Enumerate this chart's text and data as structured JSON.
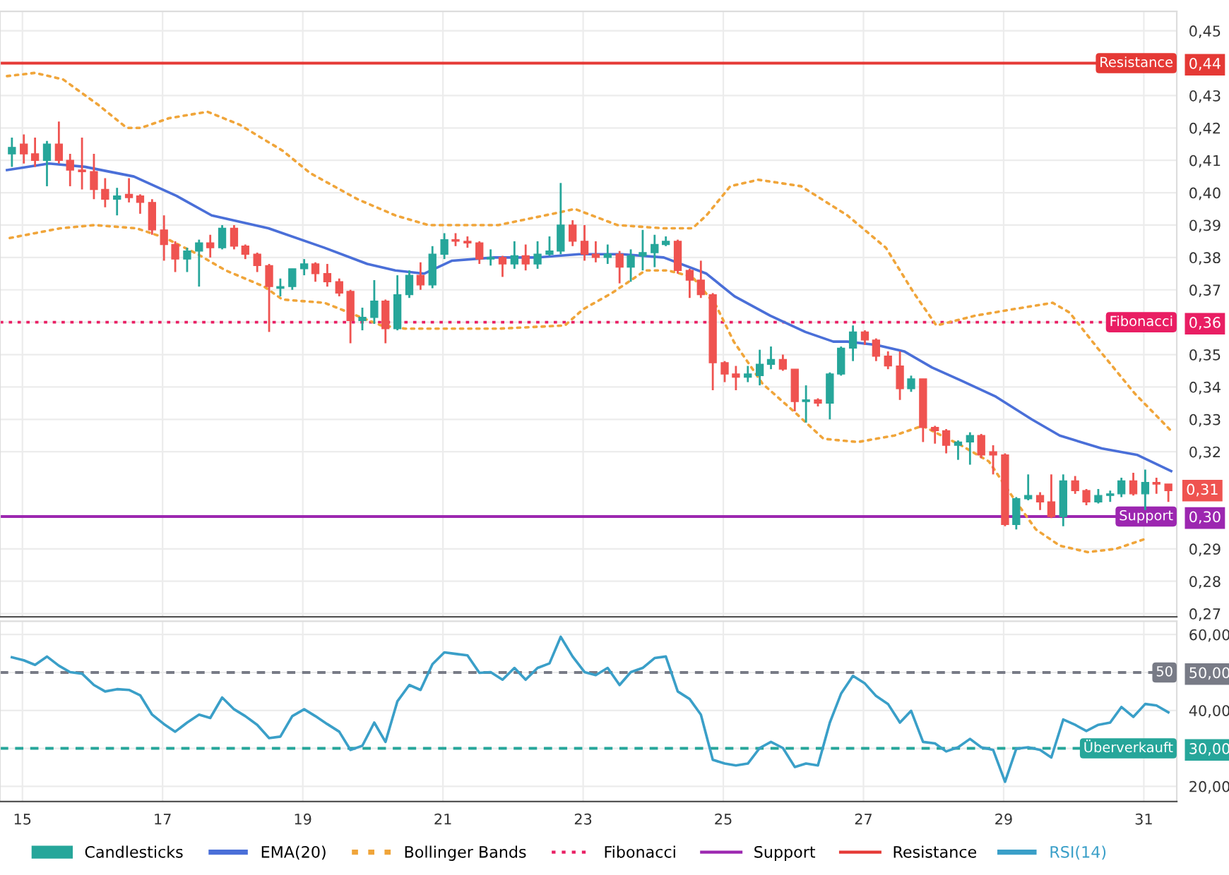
{
  "chart_data": [
    {
      "type": "candlestick",
      "legend": "bottom",
      "grid": true,
      "tick_labels": "y",
      "xlim": [
        14.68,
        31.47
      ],
      "ylim": [
        0.269,
        0.456
      ],
      "xticks": [
        15,
        17,
        19,
        21,
        23,
        25,
        27,
        29,
        31
      ],
      "yticks": [
        {
          "value": 0.27,
          "label": "0,27"
        },
        {
          "value": 0.28,
          "label": "0,28"
        },
        {
          "value": 0.29,
          "label": "0,29"
        },
        {
          "value": 0.3,
          "label": "0,30"
        },
        {
          "value": 0.32,
          "label": "0,32"
        },
        {
          "value": 0.33,
          "label": "0,33"
        },
        {
          "value": 0.34,
          "label": "0,34"
        },
        {
          "value": 0.35,
          "label": "0,35"
        },
        {
          "value": 0.36,
          "label": "0,36"
        },
        {
          "value": 0.37,
          "label": "0,37"
        },
        {
          "value": 0.38,
          "label": "0,38"
        },
        {
          "value": 0.39,
          "label": "0,39"
        },
        {
          "value": 0.4,
          "label": "0,40"
        },
        {
          "value": 0.41,
          "label": "0,41"
        },
        {
          "value": 0.42,
          "label": "0,42"
        },
        {
          "value": 0.43,
          "label": "0,43"
        },
        {
          "value": 0.44,
          "label": "0,44"
        },
        {
          "value": 0.45,
          "label": "0,45"
        }
      ],
      "series": [
        {
          "type": "candlestick",
          "name": "Candlesticks",
          "x": [
            14.85,
            15.02,
            15.18,
            15.35,
            15.52,
            15.68,
            15.85,
            16.02,
            16.18,
            16.35,
            16.52,
            16.68,
            16.85,
            17.02,
            17.18,
            17.35,
            17.52,
            17.68,
            17.85,
            18.02,
            18.18,
            18.35,
            18.52,
            18.68,
            18.85,
            19.02,
            19.18,
            19.35,
            19.52,
            19.68,
            19.85,
            20.02,
            20.18,
            20.35,
            20.52,
            20.68,
            20.85,
            21.02,
            21.18,
            21.35,
            21.52,
            21.68,
            21.85,
            22.02,
            22.18,
            22.35,
            22.52,
            22.68,
            22.85,
            23.02,
            23.18,
            23.35,
            23.52,
            23.68,
            23.85,
            24.02,
            24.18,
            24.35,
            24.52,
            24.68,
            24.85,
            25.02,
            25.18,
            25.35,
            25.52,
            25.68,
            25.85,
            26.02,
            26.18,
            26.35,
            26.52,
            26.68,
            26.85,
            27.02,
            27.18,
            27.35,
            27.52,
            27.68,
            27.85,
            28.02,
            28.18,
            28.35,
            28.52,
            28.68,
            28.85,
            29.02,
            29.18,
            29.35,
            29.52,
            29.68,
            29.85,
            30.02,
            30.18,
            30.35,
            30.52,
            30.68,
            30.85,
            31.02,
            31.18,
            31.35
          ],
          "ohlc": [
            [
              0.412,
              0.417,
              0.408,
              0.414
            ],
            [
              0.415,
              0.418,
              0.409,
              0.412
            ],
            [
              0.412,
              0.417,
              0.408,
              0.41
            ],
            [
              0.41,
              0.416,
              0.402,
              0.415
            ],
            [
              0.415,
              0.422,
              0.409,
              0.41
            ],
            [
              0.41,
              0.412,
              0.402,
              0.407
            ],
            [
              0.407,
              0.417,
              0.401,
              0.4065
            ],
            [
              0.4065,
              0.412,
              0.398,
              0.401
            ],
            [
              0.401,
              0.4045,
              0.3955,
              0.398
            ],
            [
              0.398,
              0.4015,
              0.393,
              0.399
            ],
            [
              0.3995,
              0.4045,
              0.397,
              0.3985
            ],
            [
              0.399,
              0.3995,
              0.3935,
              0.397
            ],
            [
              0.397,
              0.398,
              0.387,
              0.3885
            ],
            [
              0.3885,
              0.393,
              0.379,
              0.384
            ],
            [
              0.384,
              0.385,
              0.3755,
              0.3795
            ],
            [
              0.3795,
              0.383,
              0.3755,
              0.382
            ],
            [
              0.382,
              0.3855,
              0.371,
              0.3845
            ],
            [
              0.3845,
              0.387,
              0.38,
              0.383
            ],
            [
              0.383,
              0.39,
              0.3825,
              0.389
            ],
            [
              0.389,
              0.39,
              0.3825,
              0.3835
            ],
            [
              0.3835,
              0.384,
              0.3795,
              0.381
            ],
            [
              0.381,
              0.3815,
              0.3755,
              0.3775
            ],
            [
              0.3775,
              0.378,
              0.357,
              0.371
            ],
            [
              0.3705,
              0.3735,
              0.368,
              0.371
            ],
            [
              0.371,
              0.3765,
              0.37,
              0.3765
            ],
            [
              0.3765,
              0.3795,
              0.3745,
              0.378
            ],
            [
              0.378,
              0.3785,
              0.3725,
              0.375
            ],
            [
              0.375,
              0.378,
              0.371,
              0.3725
            ],
            [
              0.3725,
              0.3735,
              0.368,
              0.369
            ],
            [
              0.3695,
              0.37,
              0.3535,
              0.3605
            ],
            [
              0.3605,
              0.3645,
              0.3575,
              0.3615
            ],
            [
              0.3615,
              0.373,
              0.3595,
              0.3665
            ],
            [
              0.3665,
              0.367,
              0.3535,
              0.358
            ],
            [
              0.358,
              0.3745,
              0.3575,
              0.3685
            ],
            [
              0.3685,
              0.376,
              0.3675,
              0.3745
            ],
            [
              0.3745,
              0.3785,
              0.37,
              0.3715
            ],
            [
              0.3715,
              0.3835,
              0.3705,
              0.381
            ],
            [
              0.381,
              0.3875,
              0.3795,
              0.3855
            ],
            [
              0.3855,
              0.3875,
              0.3835,
              0.385
            ],
            [
              0.385,
              0.3865,
              0.383,
              0.3845
            ],
            [
              0.3845,
              0.385,
              0.378,
              0.3795
            ],
            [
              0.3795,
              0.3825,
              0.3775,
              0.38
            ],
            [
              0.38,
              0.3805,
              0.374,
              0.378
            ],
            [
              0.378,
              0.385,
              0.3765,
              0.3805
            ],
            [
              0.3805,
              0.384,
              0.376,
              0.378
            ],
            [
              0.378,
              0.385,
              0.3765,
              0.381
            ],
            [
              0.381,
              0.3865,
              0.3805,
              0.382
            ],
            [
              0.382,
              0.403,
              0.381,
              0.39
            ],
            [
              0.39,
              0.3915,
              0.3835,
              0.385
            ],
            [
              0.385,
              0.39,
              0.379,
              0.381
            ],
            [
              0.381,
              0.385,
              0.3785,
              0.38
            ],
            [
              0.38,
              0.384,
              0.378,
              0.381
            ],
            [
              0.381,
              0.382,
              0.372,
              0.377
            ],
            [
              0.377,
              0.3825,
              0.3725,
              0.3805
            ],
            [
              0.3805,
              0.3885,
              0.376,
              0.3815
            ],
            [
              0.3815,
              0.387,
              0.377,
              0.384
            ],
            [
              0.384,
              0.3865,
              0.3835,
              0.385
            ],
            [
              0.385,
              0.3855,
              0.375,
              0.376
            ],
            [
              0.376,
              0.3765,
              0.3675,
              0.373
            ],
            [
              0.373,
              0.379,
              0.3675,
              0.3685
            ],
            [
              0.3685,
              0.369,
              0.339,
              0.3475
            ],
            [
              0.3475,
              0.348,
              0.3415,
              0.344
            ],
            [
              0.344,
              0.3465,
              0.339,
              0.343
            ],
            [
              0.343,
              0.3465,
              0.3415,
              0.344
            ],
            [
              0.3435,
              0.3515,
              0.3405,
              0.347
            ],
            [
              0.347,
              0.3525,
              0.3455,
              0.3485
            ],
            [
              0.3485,
              0.35,
              0.345,
              0.3455
            ],
            [
              0.3455,
              0.3455,
              0.3325,
              0.3355
            ],
            [
              0.3355,
              0.3405,
              0.329,
              0.336
            ],
            [
              0.336,
              0.3365,
              0.334,
              0.335
            ],
            [
              0.335,
              0.3445,
              0.33,
              0.344
            ],
            [
              0.344,
              0.3525,
              0.3435,
              0.352
            ],
            [
              0.352,
              0.359,
              0.348,
              0.357
            ],
            [
              0.357,
              0.3575,
              0.353,
              0.3545
            ],
            [
              0.3545,
              0.355,
              0.348,
              0.3495
            ],
            [
              0.3495,
              0.351,
              0.3455,
              0.3465
            ],
            [
              0.3465,
              0.351,
              0.336,
              0.3395
            ],
            [
              0.3395,
              0.3435,
              0.3385,
              0.3425
            ],
            [
              0.3425,
              0.3425,
              0.323,
              0.3275
            ],
            [
              0.3275,
              0.328,
              0.3225,
              0.3265
            ],
            [
              0.3265,
              0.327,
              0.3195,
              0.322
            ],
            [
              0.322,
              0.3235,
              0.3175,
              0.323
            ],
            [
              0.323,
              0.326,
              0.316,
              0.325
            ],
            [
              0.325,
              0.3255,
              0.318,
              0.319
            ],
            [
              0.32,
              0.322,
              0.313,
              0.319
            ],
            [
              0.319,
              0.3195,
              0.297,
              0.2975
            ],
            [
              0.2975,
              0.306,
              0.296,
              0.3055
            ],
            [
              0.3055,
              0.313,
              0.305,
              0.3065
            ],
            [
              0.3065,
              0.3075,
              0.302,
              0.3045
            ],
            [
              0.3045,
              0.313,
              0.2995,
              0.3
            ],
            [
              0.3,
              0.313,
              0.297,
              0.311
            ],
            [
              0.311,
              0.3125,
              0.307,
              0.308
            ],
            [
              0.308,
              0.3085,
              0.3035,
              0.3045
            ],
            [
              0.3045,
              0.3085,
              0.304,
              0.3065
            ],
            [
              0.3065,
              0.308,
              0.3045,
              0.307
            ],
            [
              0.307,
              0.312,
              0.306,
              0.311
            ],
            [
              0.311,
              0.3135,
              0.3065,
              0.307
            ],
            [
              0.307,
              0.3145,
              0.302,
              0.3105
            ],
            [
              0.3105,
              0.312,
              0.307,
              0.31
            ],
            [
              0.31,
              0.31,
              0.3045,
              0.308
            ]
          ],
          "colors": [
            "#26a69a",
            "#ef5350",
            "#ef5350",
            "#26a69a",
            "#ef5350",
            "#ef5350",
            "#ef5350",
            "#ef5350",
            "#ef5350",
            "#26a69a",
            "#ef5350",
            "#ef5350",
            "#ef5350",
            "#ef5350",
            "#ef5350",
            "#26a69a",
            "#26a69a",
            "#ef5350",
            "#26a69a",
            "#ef5350",
            "#ef5350",
            "#ef5350",
            "#ef5350",
            "#26a69a",
            "#26a69a",
            "#26a69a",
            "#ef5350",
            "#ef5350",
            "#ef5350",
            "#ef5350",
            "#26a69a",
            "#26a69a",
            "#ef5350",
            "#26a69a",
            "#26a69a",
            "#ef5350",
            "#26a69a",
            "#26a69a",
            "#ef5350",
            "#ef5350",
            "#ef5350",
            "#26a69a",
            "#ef5350",
            "#26a69a",
            "#ef5350",
            "#26a69a",
            "#26a69a",
            "#26a69a",
            "#ef5350",
            "#ef5350",
            "#ef5350",
            "#26a69a",
            "#ef5350",
            "#26a69a",
            "#26a69a",
            "#26a69a",
            "#26a69a",
            "#ef5350",
            "#ef5350",
            "#ef5350",
            "#ef5350",
            "#ef5350",
            "#ef5350",
            "#26a69a",
            "#26a69a",
            "#26a69a",
            "#ef5350",
            "#ef5350",
            "#26a69a",
            "#ef5350",
            "#26a69a",
            "#26a69a",
            "#26a69a",
            "#ef5350",
            "#ef5350",
            "#ef5350",
            "#ef5350",
            "#26a69a",
            "#ef5350",
            "#ef5350",
            "#ef5350",
            "#26a69a",
            "#26a69a",
            "#ef5350",
            "#ef5350",
            "#ef5350",
            "#26a69a",
            "#26a69a",
            "#ef5350",
            "#ef5350",
            "#26a69a",
            "#ef5350",
            "#ef5350",
            "#26a69a",
            "#26a69a",
            "#26a69a",
            "#ef5350",
            "#26a69a",
            "#ef5350",
            "#ef5350"
          ]
        },
        {
          "type": "line",
          "name": "EMA(20)",
          "color": "#4a6fd8",
          "line_style": "solid",
          "x": [
            14.78,
            15.38,
            15.89,
            16.59,
            17.2,
            17.7,
            18.51,
            19.31,
            19.92,
            20.32,
            20.73,
            21.13,
            21.73,
            22.34,
            22.94,
            23.55,
            24.15,
            24.76,
            25.16,
            25.67,
            26.17,
            26.57,
            26.77,
            27.18,
            27.58,
            27.98,
            28.39,
            28.89,
            29.4,
            29.8,
            30.4,
            30.91,
            31.39
          ],
          "values": [
            0.407,
            0.409,
            0.408,
            0.405,
            0.399,
            0.393,
            0.389,
            0.383,
            0.378,
            0.376,
            0.375,
            0.379,
            0.38,
            0.38,
            0.381,
            0.381,
            0.38,
            0.375,
            0.368,
            0.362,
            0.357,
            0.354,
            0.354,
            0.353,
            0.351,
            0.346,
            0.342,
            0.337,
            0.33,
            0.325,
            0.321,
            0.319,
            0.314
          ]
        },
        {
          "type": "line",
          "name": "Bollinger Bands",
          "color": "#f0a53a",
          "line_style": "dotted",
          "x": [
            14.78,
            15.18,
            15.58,
            16.09,
            16.49,
            16.69,
            17.09,
            17.64,
            18.1,
            18.71,
            19.11,
            19.78,
            20.32,
            20.79,
            21.79,
            22.68,
            22.88,
            23.49,
            24.15,
            24.56,
            24.76,
            25.1,
            25.5,
            26.11,
            26.77,
            27.32,
            27.72,
            28.04,
            28.59,
            29.13,
            29.7,
            29.94,
            30.34,
            30.87,
            31.41
          ],
          "values": [
            0.436,
            0.437,
            0.435,
            0.427,
            0.42,
            0.42,
            0.423,
            0.425,
            0.421,
            0.413,
            0.406,
            0.398,
            0.393,
            0.39,
            0.39,
            0.394,
            0.395,
            0.39,
            0.389,
            0.389,
            0.393,
            0.402,
            0.404,
            0.402,
            0.393,
            0.383,
            0.369,
            0.359,
            0.362,
            0.364,
            0.366,
            0.363,
            0.352,
            0.338,
            0.326
          ]
        },
        {
          "type": "line",
          "color": "#f0a53a",
          "line_style": "dotted",
          "x": [
            14.82,
            15.54,
            16.03,
            16.63,
            17.04,
            17.5,
            17.9,
            18.45,
            18.71,
            19.31,
            20.12,
            20.46,
            21.79,
            22.74,
            23.0,
            23.41,
            23.89,
            24.21,
            24.56,
            24.9,
            25.15,
            25.56,
            26.03,
            26.43,
            26.92,
            27.44,
            27.84,
            28.39,
            28.79,
            29.13,
            29.46,
            29.8,
            30.2,
            30.6,
            31.01
          ],
          "values": [
            0.386,
            0.389,
            0.39,
            0.389,
            0.386,
            0.381,
            0.376,
            0.371,
            0.367,
            0.366,
            0.359,
            0.358,
            0.358,
            0.359,
            0.364,
            0.369,
            0.376,
            0.376,
            0.374,
            0.365,
            0.354,
            0.341,
            0.332,
            0.324,
            0.323,
            0.325,
            0.328,
            0.322,
            0.317,
            0.306,
            0.296,
            0.291,
            0.289,
            0.29,
            0.293
          ]
        }
      ],
      "ref_lines": [
        {
          "axis": "y",
          "value": 0.36,
          "label": "Fibonacci",
          "color": "#e91e63",
          "line_style": "dotted"
        },
        {
          "axis": "y",
          "value": 0.3,
          "label": "Support",
          "color": "#9c27b0",
          "line_style": "solid"
        },
        {
          "axis": "y",
          "value": 0.44,
          "label": "Resistance",
          "color": "#e53935",
          "line_style": "solid"
        }
      ],
      "annotations": [
        {
          "text": "0,31",
          "x": 31.35,
          "y": 0.308
        }
      ]
    },
    {
      "type": "line",
      "legend": "bottom",
      "grid": true,
      "xlim": [
        14.68,
        31.47
      ],
      "ylim": [
        16,
        63.5
      ],
      "xticks": [
        15,
        17,
        19,
        21,
        23,
        25,
        27,
        29,
        31
      ],
      "yticks": [
        {
          "value": 20,
          "label": "20,00"
        },
        {
          "value": 30,
          "label": "30,00"
        },
        {
          "value": 40,
          "label": "40,00"
        },
        {
          "value": 50,
          "label": "50,00"
        },
        {
          "value": 60,
          "label": "60,00"
        }
      ],
      "x": [
        14.85,
        15.02,
        15.18,
        15.35,
        15.52,
        15.68,
        15.85,
        16.02,
        16.18,
        16.35,
        16.52,
        16.68,
        16.85,
        17.02,
        17.18,
        17.35,
        17.52,
        17.68,
        17.85,
        18.02,
        18.18,
        18.35,
        18.52,
        18.68,
        18.85,
        19.02,
        19.18,
        19.35,
        19.52,
        19.68,
        19.85,
        20.02,
        20.18,
        20.35,
        20.52,
        20.68,
        20.85,
        21.02,
        21.18,
        21.35,
        21.52,
        21.68,
        21.85,
        22.02,
        22.18,
        22.35,
        22.52,
        22.68,
        22.85,
        23.02,
        23.18,
        23.35,
        23.52,
        23.68,
        23.85,
        24.02,
        24.18,
        24.35,
        24.52,
        24.68,
        24.85,
        25.02,
        25.18,
        25.35,
        25.52,
        25.68,
        25.85,
        26.02,
        26.18,
        26.35,
        26.52,
        26.68,
        26.85,
        27.02,
        27.18,
        27.35,
        27.52,
        27.68,
        27.85,
        28.02,
        28.18,
        28.35,
        28.52,
        28.68,
        28.85,
        29.02,
        29.18,
        29.35,
        29.52,
        29.68,
        29.85,
        30.02,
        30.18,
        30.35,
        30.52,
        30.68,
        30.85,
        31.02,
        31.18,
        31.35
      ],
      "series": [
        {
          "name": "RSI(14)",
          "color": "#3a9fc8",
          "line_style": "solid",
          "values": [
            54.0,
            53.2,
            52.0,
            54.2,
            51.8,
            50.1,
            49.7,
            46.7,
            45.0,
            45.6,
            45.4,
            44.0,
            38.9,
            36.4,
            34.4,
            36.8,
            38.9,
            38.0,
            43.4,
            40.3,
            38.5,
            36.2,
            32.7,
            33.1,
            38.5,
            40.3,
            38.5,
            36.4,
            34.4,
            29.6,
            30.7,
            36.8,
            31.7,
            42.4,
            46.7,
            45.4,
            52.2,
            55.3,
            54.9,
            54.5,
            49.9,
            50.1,
            48.1,
            51.2,
            48.1,
            51.2,
            52.4,
            59.4,
            54.2,
            50.1,
            49.3,
            51.2,
            46.7,
            50.1,
            51.2,
            53.8,
            54.2,
            45.0,
            43.0,
            38.9,
            27.0,
            26.0,
            25.5,
            26.0,
            30.1,
            31.7,
            30.1,
            25.1,
            26.0,
            25.5,
            36.8,
            44.4,
            49.1,
            47.1,
            43.8,
            41.7,
            36.8,
            39.9,
            31.7,
            31.3,
            29.2,
            30.3,
            32.5,
            30.3,
            29.6,
            21.2,
            29.9,
            30.3,
            29.6,
            27.6,
            37.6,
            36.2,
            34.6,
            36.2,
            36.8,
            40.9,
            38.3,
            41.7,
            41.3,
            39.5
          ]
        }
      ],
      "ref_lines": [
        {
          "axis": "y",
          "value": 50,
          "label": "50",
          "color": "#787b86",
          "line_style": "dashed"
        },
        {
          "axis": "y",
          "value": 30,
          "label": "Überverkauft",
          "color": "#26a69a",
          "line_style": "dashed"
        }
      ]
    }
  ]
}
